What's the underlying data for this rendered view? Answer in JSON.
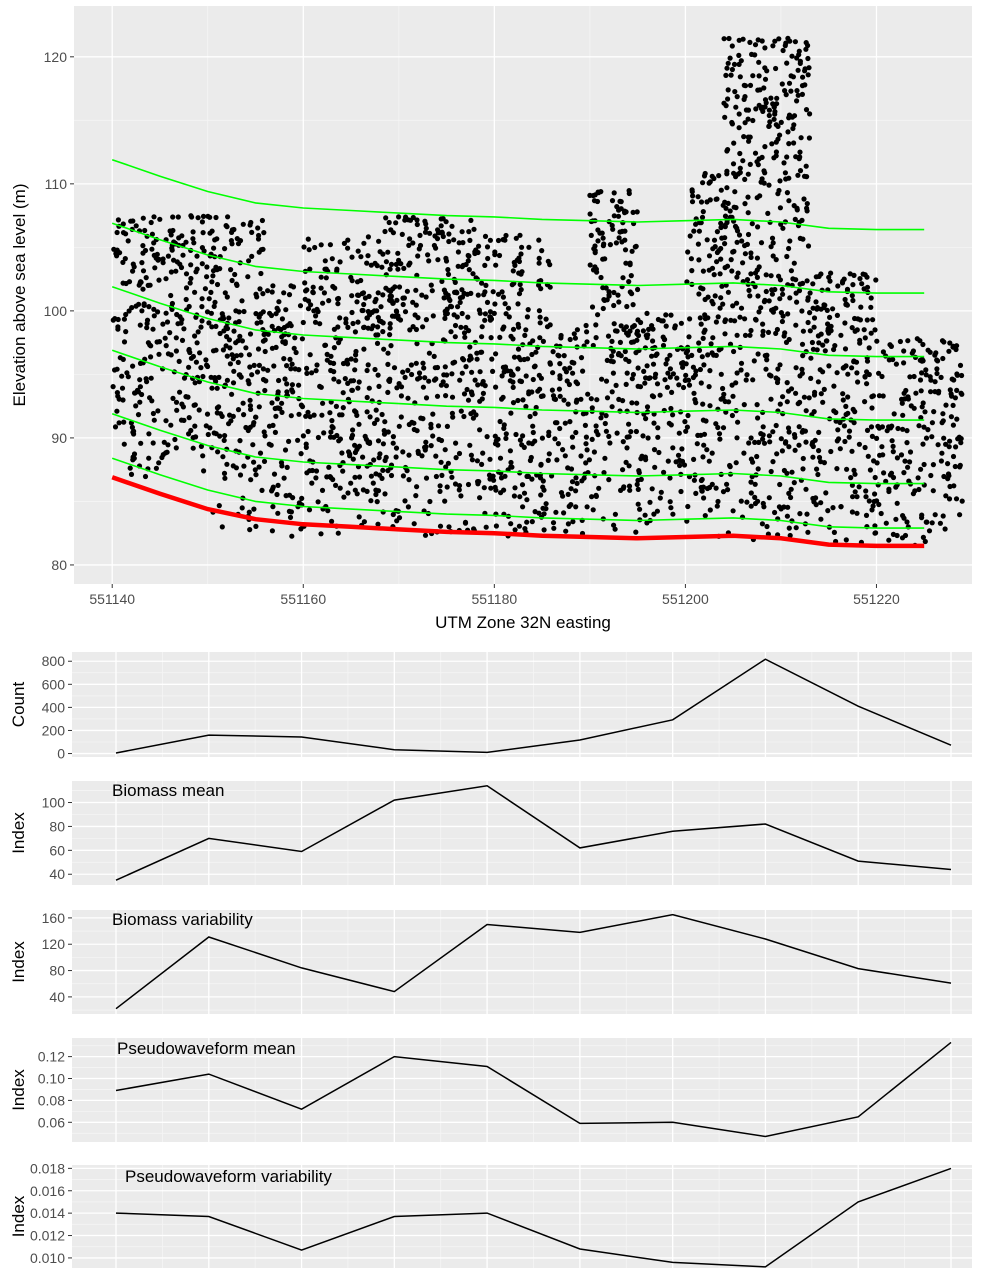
{
  "chart_data": [
    {
      "type": "scatter",
      "xlabel": "UTM Zone 32N easting",
      "ylabel": "Elevation above sea level (m)",
      "xlim": [
        551136,
        551230
      ],
      "ylim": [
        78.5,
        124
      ],
      "xticks": [
        551140,
        551160,
        551180,
        551200,
        551220
      ],
      "yticks": [
        80,
        90,
        100,
        110,
        120
      ],
      "grid": true,
      "background": "#ebebeb",
      "point_color": "#000000",
      "point_clusters": [
        {
          "x0": 551140,
          "x1": 551145,
          "ymin": 86.5,
          "ymax": 107.5
        },
        {
          "x0": 551145,
          "x1": 551150,
          "ymin": 87,
          "ymax": 107.5
        },
        {
          "x0": 551150,
          "x1": 551156,
          "ymin": 82.5,
          "ymax": 107.5
        },
        {
          "x0": 551156,
          "x1": 551160,
          "ymin": 82,
          "ymax": 102
        },
        {
          "x0": 551160,
          "x1": 551168,
          "ymin": 82,
          "ymax": 106
        },
        {
          "x0": 551168,
          "x1": 551178,
          "ymin": 82,
          "ymax": 107.5
        },
        {
          "x0": 551178,
          "x1": 551186,
          "ymin": 82,
          "ymax": 106
        },
        {
          "x0": 551186,
          "x1": 551190,
          "ymin": 82,
          "ymax": 99
        },
        {
          "x0": 551190,
          "x1": 551195,
          "ymin": 82,
          "ymax": 109.5
        },
        {
          "x0": 551195,
          "x1": 551200,
          "ymin": 82,
          "ymax": 100
        },
        {
          "x0": 551200,
          "x1": 551204,
          "ymin": 82,
          "ymax": 111
        },
        {
          "x0": 551204,
          "x1": 551213,
          "ymin": 81.5,
          "ymax": 121.5
        },
        {
          "x0": 551213,
          "x1": 551220,
          "ymin": 81.5,
          "ymax": 103
        },
        {
          "x0": 551220,
          "x1": 551229,
          "ymin": 81.5,
          "ymax": 98
        }
      ],
      "series": [
        {
          "color": "#ff0000",
          "x": [
            551140,
            551145,
            551150,
            551155,
            551160,
            551165,
            551170,
            551175,
            551180,
            551185,
            551190,
            551195,
            551200,
            551205,
            551210,
            551215,
            551220,
            551225
          ],
          "y": [
            86.9,
            85.6,
            84.4,
            83.6,
            83.2,
            83.0,
            82.8,
            82.6,
            82.5,
            82.3,
            82.2,
            82.1,
            82.2,
            82.3,
            82.1,
            81.6,
            81.5,
            81.5
          ]
        },
        {
          "color": "#00ff00",
          "x": [
            551140,
            551145,
            551150,
            551155,
            551160,
            551165,
            551170,
            551175,
            551180,
            551185,
            551190,
            551195,
            551200,
            551205,
            551210,
            551215,
            551220,
            551225
          ],
          "y": [
            88.4,
            87.1,
            85.9,
            85.0,
            84.6,
            84.4,
            84.2,
            84.0,
            83.9,
            83.7,
            83.6,
            83.5,
            83.6,
            83.7,
            83.5,
            83.0,
            82.9,
            82.9
          ]
        },
        {
          "color": "#00ff00",
          "x": [
            551140,
            551145,
            551150,
            551155,
            551160,
            551165,
            551170,
            551175,
            551180,
            551185,
            551190,
            551195,
            551200,
            551205,
            551210,
            551215,
            551220,
            551225
          ],
          "y": [
            91.9,
            90.6,
            89.4,
            88.5,
            88.1,
            87.9,
            87.7,
            87.5,
            87.4,
            87.2,
            87.1,
            87.0,
            87.1,
            87.2,
            87.0,
            86.5,
            86.4,
            86.4
          ]
        },
        {
          "color": "#00ff00",
          "x": [
            551140,
            551145,
            551150,
            551155,
            551160,
            551165,
            551170,
            551175,
            551180,
            551185,
            551190,
            551195,
            551200,
            551205,
            551210,
            551215,
            551220,
            551225
          ],
          "y": [
            96.9,
            95.6,
            94.4,
            93.5,
            93.1,
            92.9,
            92.7,
            92.5,
            92.4,
            92.2,
            92.1,
            92.0,
            92.1,
            92.2,
            92.0,
            91.5,
            91.4,
            91.4
          ]
        },
        {
          "color": "#00ff00",
          "x": [
            551140,
            551145,
            551150,
            551155,
            551160,
            551165,
            551170,
            551175,
            551180,
            551185,
            551190,
            551195,
            551200,
            551205,
            551210,
            551215,
            551220,
            551225
          ],
          "y": [
            101.9,
            100.6,
            99.4,
            98.5,
            98.1,
            97.9,
            97.7,
            97.5,
            97.4,
            97.2,
            97.1,
            97.0,
            97.1,
            97.2,
            97.0,
            96.5,
            96.4,
            96.4
          ]
        },
        {
          "color": "#00ff00",
          "x": [
            551140,
            551145,
            551150,
            551155,
            551160,
            551165,
            551170,
            551175,
            551180,
            551185,
            551190,
            551195,
            551200,
            551205,
            551210,
            551215,
            551220,
            551225
          ],
          "y": [
            106.9,
            105.6,
            104.4,
            103.5,
            103.1,
            102.9,
            102.7,
            102.5,
            102.4,
            102.2,
            102.1,
            102.0,
            102.1,
            102.2,
            102.0,
            101.5,
            101.4,
            101.4
          ]
        },
        {
          "color": "#00ff00",
          "x": [
            551140,
            551145,
            551150,
            551155,
            551160,
            551165,
            551170,
            551175,
            551180,
            551185,
            551190,
            551195,
            551200,
            551205,
            551210,
            551215,
            551220,
            551225
          ],
          "y": [
            111.9,
            110.6,
            109.4,
            108.5,
            108.1,
            107.9,
            107.7,
            107.5,
            107.4,
            107.2,
            107.1,
            107.0,
            107.1,
            107.2,
            107.0,
            106.5,
            106.4,
            106.4
          ]
        }
      ]
    },
    {
      "type": "line",
      "title": "",
      "ylabel": "Count",
      "x": [
        1,
        2,
        3,
        4,
        5,
        6,
        7,
        8,
        9,
        10
      ],
      "values": [
        5,
        160,
        143,
        33,
        10,
        117,
        292,
        818,
        410,
        72
      ],
      "ylim": [
        -30,
        880
      ],
      "yticks": [
        0,
        200,
        400,
        600,
        800
      ],
      "ytick_labels": [
        "0",
        "200",
        "400",
        "600",
        "800"
      ],
      "grid": true
    },
    {
      "type": "line",
      "title": "Biomass mean",
      "ylabel": "Index",
      "x": [
        1,
        2,
        3,
        4,
        5,
        6,
        7,
        8,
        9,
        10
      ],
      "values": [
        35,
        70,
        59,
        102,
        114,
        62,
        76,
        82,
        51,
        44
      ],
      "ylim": [
        31,
        118
      ],
      "yticks": [
        40,
        60,
        80,
        100
      ],
      "ytick_labels": [
        "40",
        "60",
        "80",
        "100"
      ],
      "grid": true
    },
    {
      "type": "line",
      "title": "Biomass variability",
      "ylabel": "Index",
      "x": [
        1,
        2,
        3,
        4,
        5,
        6,
        7,
        8,
        9,
        10
      ],
      "values": [
        22,
        131,
        84,
        48,
        150,
        138,
        165,
        128,
        83,
        61
      ],
      "ylim": [
        14,
        172
      ],
      "yticks": [
        40,
        80,
        120,
        160
      ],
      "ytick_labels": [
        "40",
        "80",
        "120",
        "160"
      ],
      "grid": true
    },
    {
      "type": "line",
      "title": "Pseudowaveform mean",
      "ylabel": "Index",
      "x": [
        1,
        2,
        3,
        4,
        5,
        6,
        7,
        8,
        9,
        10
      ],
      "values": [
        0.089,
        0.104,
        0.072,
        0.12,
        0.111,
        0.059,
        0.06,
        0.047,
        0.065,
        0.133
      ],
      "ylim": [
        0.042,
        0.137
      ],
      "yticks": [
        0.06,
        0.08,
        0.1,
        0.12
      ],
      "ytick_labels": [
        "0.06",
        "0.08",
        "0.10",
        "0.12"
      ],
      "grid": true
    },
    {
      "type": "line",
      "title": "Pseudowaveform variability",
      "ylabel": "Index",
      "x": [
        1,
        2,
        3,
        4,
        5,
        6,
        7,
        8,
        9,
        10
      ],
      "values": [
        0.014,
        0.0137,
        0.0107,
        0.0137,
        0.014,
        0.0108,
        0.0096,
        0.0092,
        0.015,
        0.018
      ],
      "ylim": [
        0.0091,
        0.0183
      ],
      "yticks": [
        0.01,
        0.012,
        0.014,
        0.016,
        0.018
      ],
      "ytick_labels": [
        "0.010",
        "0.012",
        "0.014",
        "0.016",
        "0.018"
      ],
      "grid": true
    }
  ]
}
